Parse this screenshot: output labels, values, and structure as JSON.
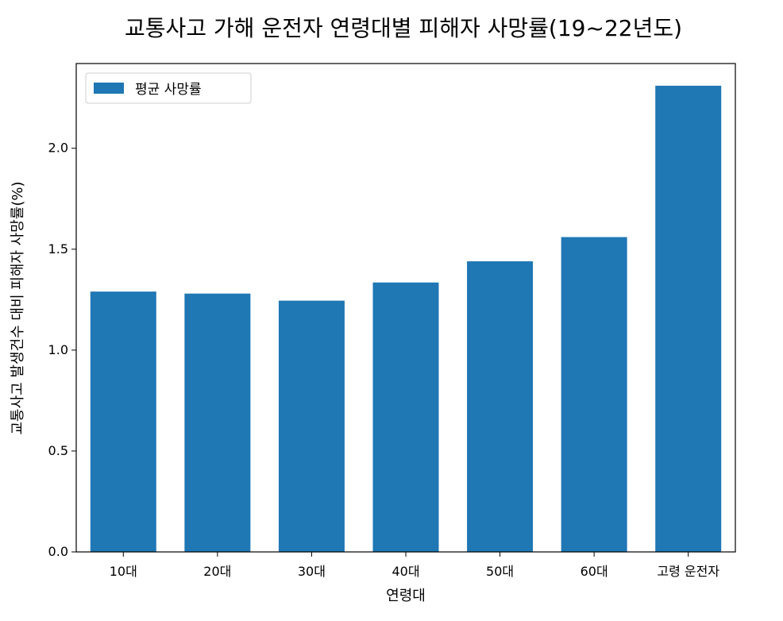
{
  "chart_data": {
    "type": "bar",
    "title": "교통사고 가해 운전자 연령대별 피해자 사망률(19~22년도)",
    "xlabel": "연령대",
    "ylabel": "교통사고 발생건수 대비 피해자 사망률(%)",
    "categories": [
      "10대",
      "20대",
      "30대",
      "40대",
      "50대",
      "60대",
      "고령 운전자"
    ],
    "series": [
      {
        "name": "평균 사망률",
        "values": [
          1.29,
          1.28,
          1.245,
          1.335,
          1.44,
          1.56,
          2.31
        ]
      }
    ],
    "ylim": [
      0,
      2.42
    ],
    "yticks": [
      "0.0",
      "0.5",
      "1.0",
      "1.5",
      "2.0"
    ],
    "legend_position": "upper-left",
    "grid": false,
    "bar_color": "#1f77b4"
  }
}
